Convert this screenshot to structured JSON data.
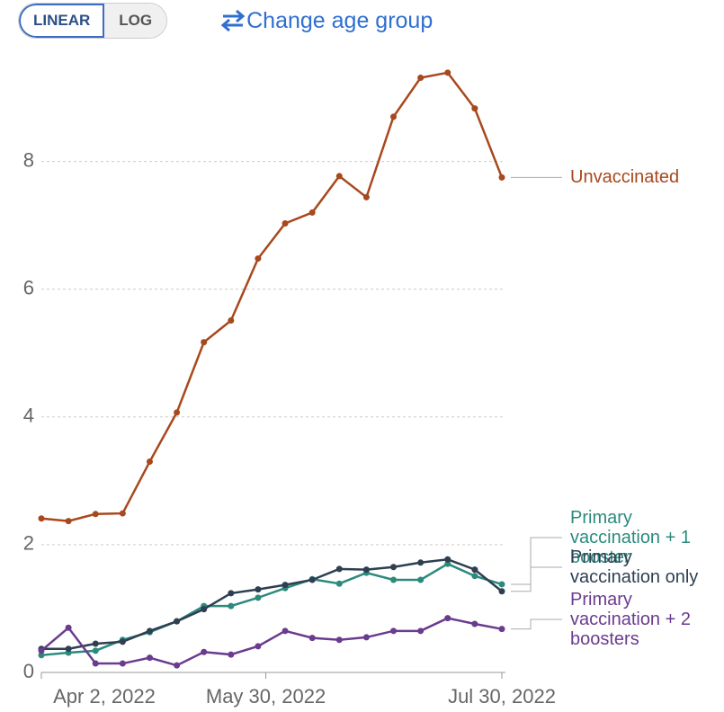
{
  "controls": {
    "scale_options": [
      "LINEAR",
      "LOG"
    ],
    "selected": "LINEAR",
    "age_group_button": "Change age group"
  },
  "chart_data": {
    "type": "line",
    "x": [
      "2022-04-02",
      "2022-04-09",
      "2022-04-16",
      "2022-04-23",
      "2022-04-30",
      "2022-05-07",
      "2022-05-14",
      "2022-05-21",
      "2022-05-28",
      "2022-06-04",
      "2022-06-11",
      "2022-06-18",
      "2022-06-25",
      "2022-07-02",
      "2022-07-09",
      "2022-07-16",
      "2022-07-23",
      "2022-07-30"
    ],
    "xlim": [
      "2022-04-02",
      "2022-07-30"
    ],
    "xticks": [
      {
        "value": "2022-04-02",
        "label": "Apr 2, 2022"
      },
      {
        "value": "2022-05-30",
        "label": "May 30, 2022"
      },
      {
        "value": "2022-07-30",
        "label": "Jul 30, 2022"
      }
    ],
    "ylim": [
      0,
      9.5
    ],
    "yticks": [
      0,
      2,
      4,
      6,
      8
    ],
    "grid": true,
    "series": [
      {
        "name": "Unvaccinated",
        "color": "#a8481d",
        "values": [
          2.41,
          2.37,
          2.48,
          2.49,
          3.3,
          4.07,
          5.17,
          5.51,
          6.48,
          7.03,
          7.2,
          7.77,
          7.44,
          8.7,
          9.31,
          9.39,
          8.83,
          7.75
        ]
      },
      {
        "name": "Primary vaccination + 1 booster",
        "color": "#2b8a7d",
        "values": [
          0.27,
          0.31,
          0.34,
          0.51,
          0.63,
          0.8,
          1.04,
          1.04,
          1.17,
          1.32,
          1.46,
          1.39,
          1.56,
          1.45,
          1.45,
          1.7,
          1.51,
          1.38
        ]
      },
      {
        "name": "Primary vaccination only",
        "color": "#2e3f52",
        "values": [
          0.37,
          0.37,
          0.45,
          0.48,
          0.65,
          0.8,
          0.99,
          1.24,
          1.3,
          1.37,
          1.45,
          1.62,
          1.61,
          1.65,
          1.72,
          1.77,
          1.61,
          1.27
        ]
      },
      {
        "name": "Primary vaccination + 2 boosters",
        "color": "#6a3b8e",
        "values": [
          0.34,
          0.7,
          0.14,
          0.14,
          0.23,
          0.11,
          0.32,
          0.28,
          0.41,
          0.65,
          0.54,
          0.51,
          0.55,
          0.65,
          0.65,
          0.85,
          0.76,
          0.68
        ]
      }
    ]
  }
}
